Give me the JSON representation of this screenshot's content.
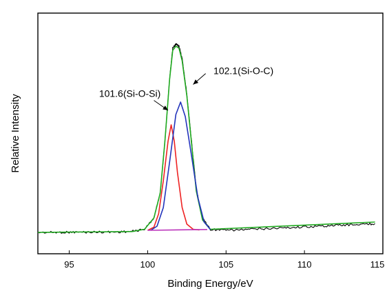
{
  "chart_data": {
    "type": "line",
    "title": "",
    "xlabel": "Binding Energy/eV",
    "ylabel": "Relative Intensity",
    "xlim": [
      93,
      115
    ],
    "ylim": [
      0,
      100
    ],
    "xticks": [
      95,
      100,
      105,
      110,
      115
    ],
    "xtick_labels": [
      "95",
      "100",
      "105",
      "110",
      "115"
    ],
    "yticks_shown": false,
    "grid": false,
    "legend": "none",
    "series": [
      {
        "color": "#000000",
        "x": [
          93,
          94,
          95,
          96,
          97,
          98,
          99,
          99.8,
          100.4,
          100.8,
          101.1,
          101.4,
          101.6,
          101.8,
          102.0,
          102.2,
          102.5,
          102.8,
          103.1,
          103.5,
          104.0,
          105,
          106,
          107,
          108,
          109,
          110,
          111,
          112,
          113,
          114,
          114.5
        ],
        "y": [
          1.0,
          1.0,
          1.1,
          1.1,
          1.2,
          1.2,
          1.5,
          2.5,
          8,
          20,
          45,
          75,
          90,
          92,
          91,
          85,
          68,
          45,
          22,
          8,
          2.5,
          2.0,
          2.3,
          2.6,
          3.0,
          3.3,
          3.7,
          4.0,
          4.4,
          4.7,
          5.0,
          5.2
        ]
      },
      {
        "color": "#1faa1f",
        "x": [
          93,
          99.0,
          99.8,
          100.4,
          100.8,
          101.1,
          101.4,
          101.6,
          101.8,
          102.0,
          102.2,
          102.5,
          102.8,
          103.1,
          103.5,
          104.0,
          114.5
        ],
        "y": [
          1.0,
          1.4,
          2.5,
          8,
          20,
          45,
          75,
          89,
          91,
          90,
          84,
          67,
          44,
          21,
          7,
          2.5,
          6.0
        ]
      },
      {
        "color": "#ee2222",
        "x": [
          100.0,
          100.4,
          100.7,
          101.0,
          101.3,
          101.5,
          101.7,
          101.9,
          102.2,
          102.5,
          102.9,
          103.3
        ],
        "y": [
          2.0,
          3.5,
          10,
          26,
          45,
          53,
          45,
          30,
          13,
          5,
          2.5,
          2.2
        ]
      },
      {
        "color": "#2233bb",
        "x": [
          100.2,
          100.6,
          101.0,
          101.4,
          101.8,
          102.1,
          102.4,
          102.8,
          103.2,
          103.6,
          104.0
        ],
        "y": [
          2.0,
          4,
          13,
          35,
          58,
          64,
          57,
          38,
          18,
          6,
          2.4
        ]
      },
      {
        "color": "#bb33bb",
        "x": [
          100.0,
          103.8
        ],
        "y": [
          2.0,
          2.4
        ]
      }
    ],
    "annotations": [
      {
        "text": "101.6(Si-O-Si)",
        "label_x": 96.9,
        "label_y": 66.5,
        "arrow_from": [
          100.4,
          64.8
        ],
        "arrow_to": [
          101.3,
          60.0
        ]
      },
      {
        "text": "102.1(Si-O-C)",
        "label_x": 104.2,
        "label_y": 77.5,
        "arrow_from": [
          103.7,
          77.8
        ],
        "arrow_to": [
          102.9,
          72.5
        ]
      }
    ]
  }
}
